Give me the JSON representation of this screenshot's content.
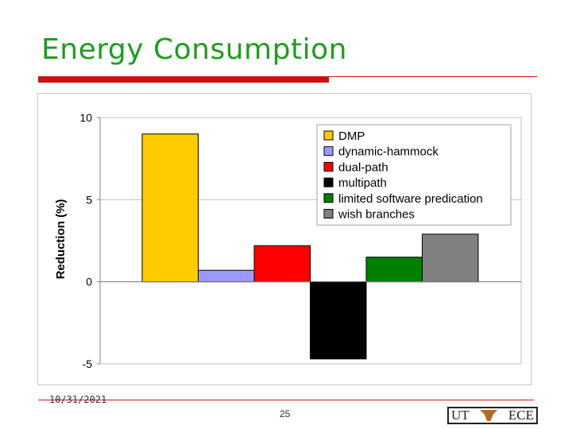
{
  "slide": {
    "title": "Energy Consumption",
    "date": "10/31/2021",
    "page": "25",
    "logo_left": "UT",
    "logo_right": "ECE"
  },
  "colors": {
    "title": "#1f9c1f",
    "accent_bar": "#cc1111"
  },
  "chart_data": {
    "type": "bar",
    "ylabel": "Reduction (%)",
    "xlabel": "",
    "ylim": [
      -5,
      10
    ],
    "yticks": [
      10,
      5,
      0,
      -5
    ],
    "grid": "horizontal",
    "legend_position": "top-right",
    "series": [
      {
        "name": "DMP",
        "value": 9.0,
        "color": "#ffcc00"
      },
      {
        "name": "dynamic-hammock",
        "value": 0.7,
        "color": "#9999ff"
      },
      {
        "name": "dual-path",
        "value": 2.2,
        "color": "#ff0000"
      },
      {
        "name": "multipath",
        "value": -4.7,
        "color": "#000000"
      },
      {
        "name": "limited software predication",
        "value": 1.5,
        "color": "#008000"
      },
      {
        "name": "wish branches",
        "value": 2.9,
        "color": "#808080"
      }
    ]
  }
}
